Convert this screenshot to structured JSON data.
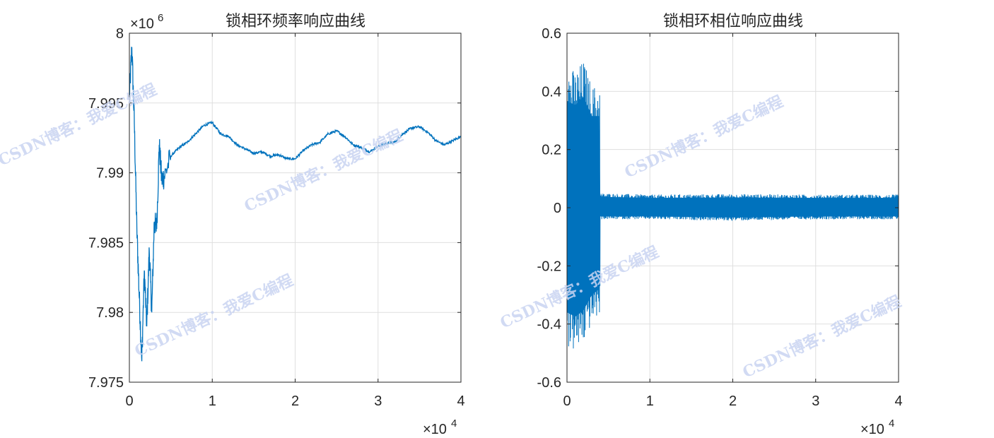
{
  "chart_data": [
    {
      "type": "line",
      "title": "锁相环频率响应曲线",
      "xlim": [
        0,
        40000
      ],
      "ylim": [
        7.975,
        8.0
      ],
      "x_ticks": [
        "0",
        "1",
        "2",
        "3",
        "4"
      ],
      "x_exponent": "×10",
      "x_exponent_power": "4",
      "y_ticks": [
        "8",
        "7.995",
        "7.99",
        "7.985",
        "7.98",
        "7.975"
      ],
      "y_exponent": "×10",
      "y_exponent_power": "6",
      "grid": true,
      "line_color": "#0072BD",
      "series": [
        {
          "x": [
            0,
            300,
            600,
            900,
            1200,
            1500,
            1800,
            2100,
            2400,
            2700,
            3000,
            3300,
            3600,
            3900,
            4200,
            5000,
            6000,
            7000,
            8000,
            9000,
            10000,
            11000,
            12000,
            13000,
            14000,
            15000,
            16000,
            17000,
            18000,
            19000,
            20000,
            21000,
            22000,
            23000,
            24000,
            25000,
            26000,
            27000,
            28000,
            29000,
            30000,
            31000,
            32000,
            33000,
            34000,
            35000,
            36000,
            37000,
            38000,
            39000,
            40000
          ],
          "values": [
            7.9955,
            7.999,
            7.9935,
            7.986,
            7.981,
            7.9765,
            7.983,
            7.979,
            7.9845,
            7.98,
            7.9865,
            7.986,
            7.992,
            7.9895,
            7.9897,
            7.9912,
            7.9918,
            7.9922,
            7.9928,
            7.9934,
            7.9936,
            7.9928,
            7.9926,
            7.992,
            7.9917,
            7.9914,
            7.9915,
            7.9912,
            7.9913,
            7.991,
            7.991,
            7.9916,
            7.992,
            7.9922,
            7.9928,
            7.993,
            7.9926,
            7.992,
            7.9918,
            7.9915,
            7.9919,
            7.9921,
            7.9922,
            7.9928,
            7.9932,
            7.9933,
            7.9929,
            7.9923,
            7.992,
            7.9923,
            7.9926
          ]
        }
      ]
    },
    {
      "type": "line",
      "title": "锁相环相位响应曲线",
      "xlim": [
        0,
        40000
      ],
      "ylim": [
        -0.6,
        0.6
      ],
      "x_ticks": [
        "0",
        "1",
        "2",
        "3",
        "4"
      ],
      "x_exponent": "×10",
      "x_exponent_power": "4",
      "y_ticks": [
        "0.6",
        "0.4",
        "0.2",
        "0",
        "-0.2",
        "-0.4",
        "-0.6"
      ],
      "grid": true,
      "line_color": "#0072BD",
      "series": [
        {
          "envelope_x": [
            0,
            1000,
            2000,
            3000,
            3999,
            4000,
            10000,
            20000,
            30000,
            40000
          ],
          "envelope_upper": [
            0.49,
            0.47,
            0.51,
            0.42,
            0.42,
            0.05,
            0.045,
            0.047,
            0.045,
            0.045
          ],
          "envelope_lower": [
            -0.48,
            -0.5,
            -0.47,
            -0.4,
            -0.37,
            -0.04,
            -0.04,
            -0.045,
            -0.04,
            -0.04
          ]
        }
      ]
    }
  ],
  "watermark": "CSDN博客：我爱C编程"
}
